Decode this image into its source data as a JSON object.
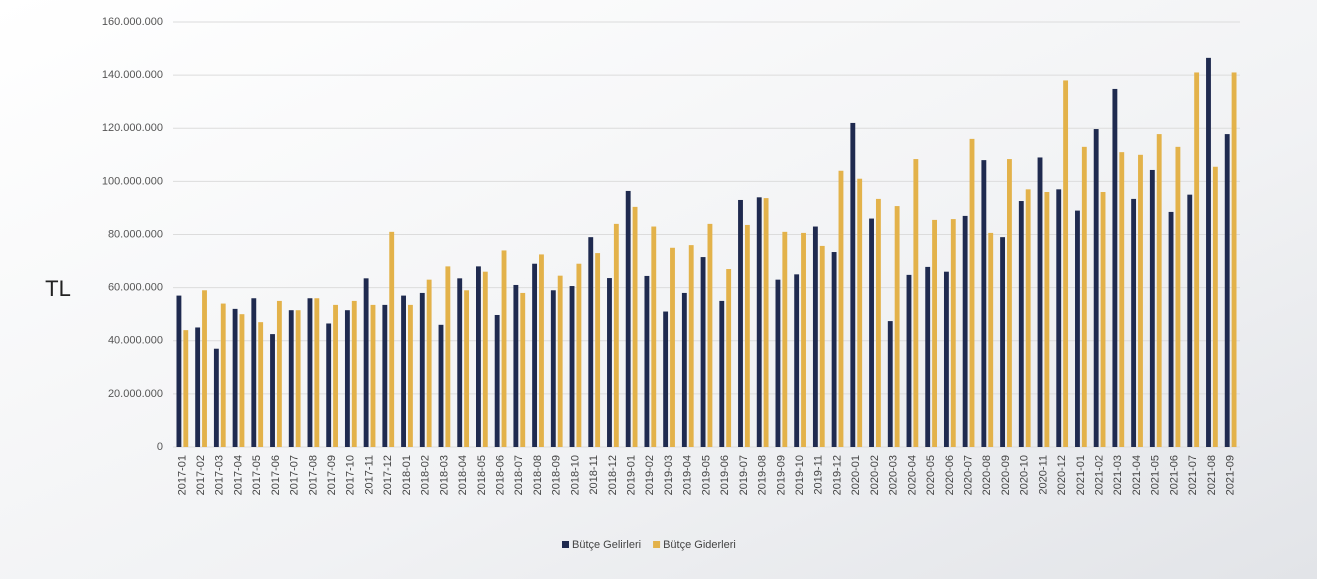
{
  "chart_data": {
    "type": "bar",
    "y_label": "TL",
    "categories": [
      "2017-01",
      "2017-02",
      "2017-03",
      "2017-04",
      "2017-05",
      "2017-06",
      "2017-07",
      "2017-08",
      "2017-09",
      "2017-10",
      "2017-11",
      "2017-12",
      "2018-01",
      "2018-02",
      "2018-03",
      "2018-04",
      "2018-05",
      "2018-06",
      "2018-07",
      "2018-08",
      "2018-09",
      "2018-10",
      "2018-11",
      "2018-12",
      "2019-01",
      "2019-02",
      "2019-03",
      "2019-04",
      "2019-05",
      "2019-06",
      "2019-07",
      "2019-08",
      "2019-09",
      "2019-10",
      "2019-11",
      "2019-12",
      "2020-01",
      "2020-02",
      "2020-03",
      "2020-04",
      "2020-05",
      "2020-06",
      "2020-07",
      "2020-08",
      "2020-09",
      "2020-10",
      "2020-11",
      "2020-12",
      "2021-01",
      "2021-02",
      "2021-03",
      "2021-04",
      "2021-05",
      "2021-06",
      "2021-07",
      "2021-08",
      "2021-09"
    ],
    "series": [
      {
        "name": "Bütçe Gelirleri",
        "color": "#1f2a4f",
        "values": [
          57000000,
          45000000,
          37000000,
          52000000,
          56000000,
          42500000,
          51500000,
          56000000,
          46500000,
          51500000,
          63500000,
          53500000,
          57000000,
          58000000,
          46000000,
          63500000,
          68000000,
          49700000,
          61000000,
          69000000,
          59000000,
          60600000,
          79000000,
          63600000,
          96400000,
          64400000,
          51000000,
          58000000,
          71500000,
          55000000,
          93000000,
          94000000,
          63000000,
          65000000,
          83000000,
          73400000,
          122000000,
          86000000,
          47400000,
          64800000,
          67800000,
          66000000,
          87000000,
          108000000,
          79000000,
          92600000,
          109000000,
          97000000,
          89000000,
          119700000,
          134800000,
          93400000,
          104300000,
          88500000,
          95000000,
          146500000,
          117800000
        ]
      },
      {
        "name": "Bütçe Giderleri",
        "color": "#e3b24a",
        "values": [
          44000000,
          59000000,
          54000000,
          50000000,
          47000000,
          55000000,
          51500000,
          56000000,
          53500000,
          55000000,
          53500000,
          81000000,
          53500000,
          63000000,
          68000000,
          59000000,
          66000000,
          74000000,
          58000000,
          72500000,
          64500000,
          69000000,
          73000000,
          84000000,
          90400000,
          83000000,
          75000000,
          76000000,
          84000000,
          67000000,
          83600000,
          93700000,
          81000000,
          80600000,
          75700000,
          104000000,
          101000000,
          93400000,
          90700000,
          108400000,
          85500000,
          85800000,
          116000000,
          80600000,
          108400000,
          97000000,
          96000000,
          138000000,
          113000000,
          96000000,
          111000000,
          110000000,
          117800000,
          113000000,
          141000000,
          105500000,
          141000000
        ]
      }
    ],
    "ylim": [
      0,
      160000000
    ],
    "yticks": [
      0,
      {
        "value": 20000000,
        "label": "20.000.000"
      },
      {
        "value": 40000000,
        "label": "40.000.000"
      },
      {
        "value": 60000000,
        "label": "60.000.000"
      },
      {
        "value": 80000000,
        "label": "80.000.000"
      },
      {
        "value": 100000000,
        "label": "100.000.000"
      },
      {
        "value": 120000000,
        "label": "120.000.000"
      },
      {
        "value": 140000000,
        "label": "140.000.000"
      },
      {
        "value": 160000000,
        "label": "160.000.000"
      }
    ],
    "grid": true,
    "legend": "bottom"
  }
}
